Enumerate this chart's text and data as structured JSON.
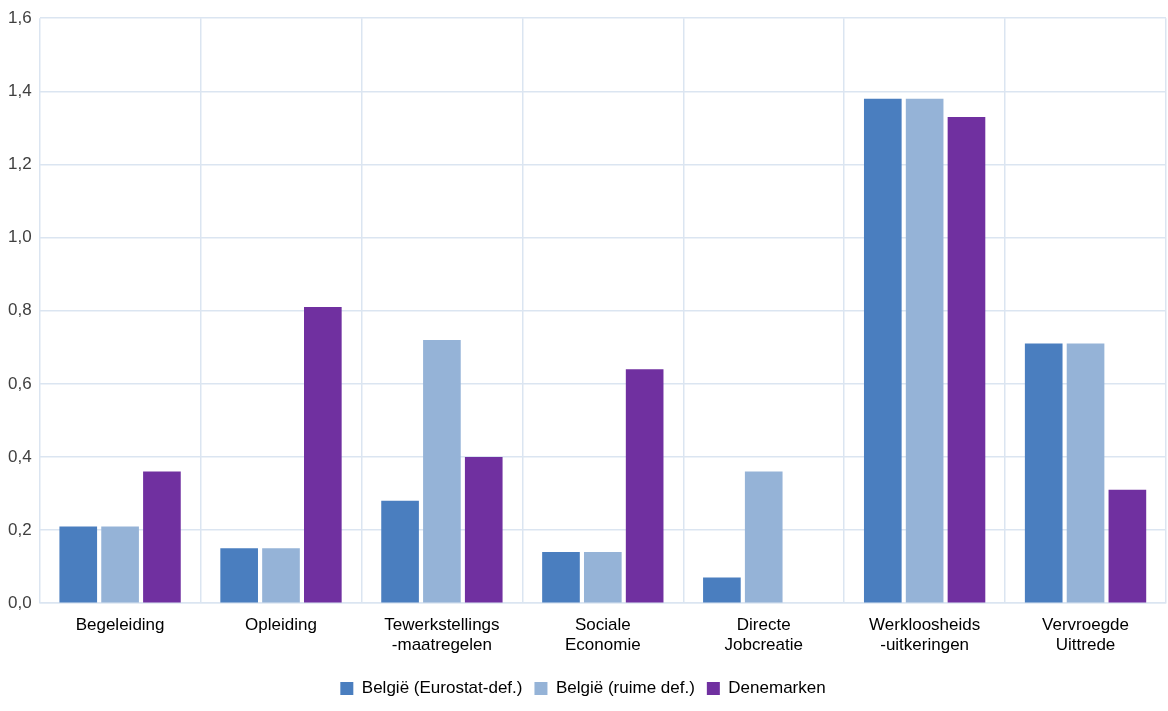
{
  "chart_data": {
    "type": "bar",
    "categories": [
      "Begeleiding",
      "Opleiding",
      "Tewerkstellings\n-maatregelen",
      "Sociale\nEconomie",
      "Directe\nJobcreatie",
      "Werkloosheids\n-uitkeringen",
      "Vervroegde\nUittrede"
    ],
    "series": [
      {
        "name": "België (Eurostat-def.)",
        "color": "#4a7ebf",
        "values": [
          0.21,
          0.15,
          0.28,
          0.14,
          0.07,
          1.38,
          0.71
        ]
      },
      {
        "name": "België (ruime def.)",
        "color": "#95b3d7",
        "values": [
          0.21,
          0.15,
          0.72,
          0.14,
          0.36,
          1.38,
          0.71
        ]
      },
      {
        "name": "Denemarken",
        "color": "#7030a0",
        "values": [
          0.36,
          0.81,
          0.4,
          0.64,
          0,
          1.33,
          0.31
        ]
      }
    ],
    "ylim": [
      0,
      1.6
    ],
    "yticks": [
      {
        "value": 0,
        "label": "0,0"
      },
      {
        "value": 0.2,
        "label": "0,2"
      },
      {
        "value": 0.4,
        "label": "0,4"
      },
      {
        "value": 0.6,
        "label": "0,6"
      },
      {
        "value": 0.8,
        "label": "0,8"
      },
      {
        "value": 1.0,
        "label": "1,0"
      },
      {
        "value": 1.2,
        "label": "1,2"
      },
      {
        "value": 1.4,
        "label": "1,4"
      },
      {
        "value": 1.6,
        "label": "1,6"
      }
    ],
    "grid": true,
    "legend": "bottom"
  }
}
